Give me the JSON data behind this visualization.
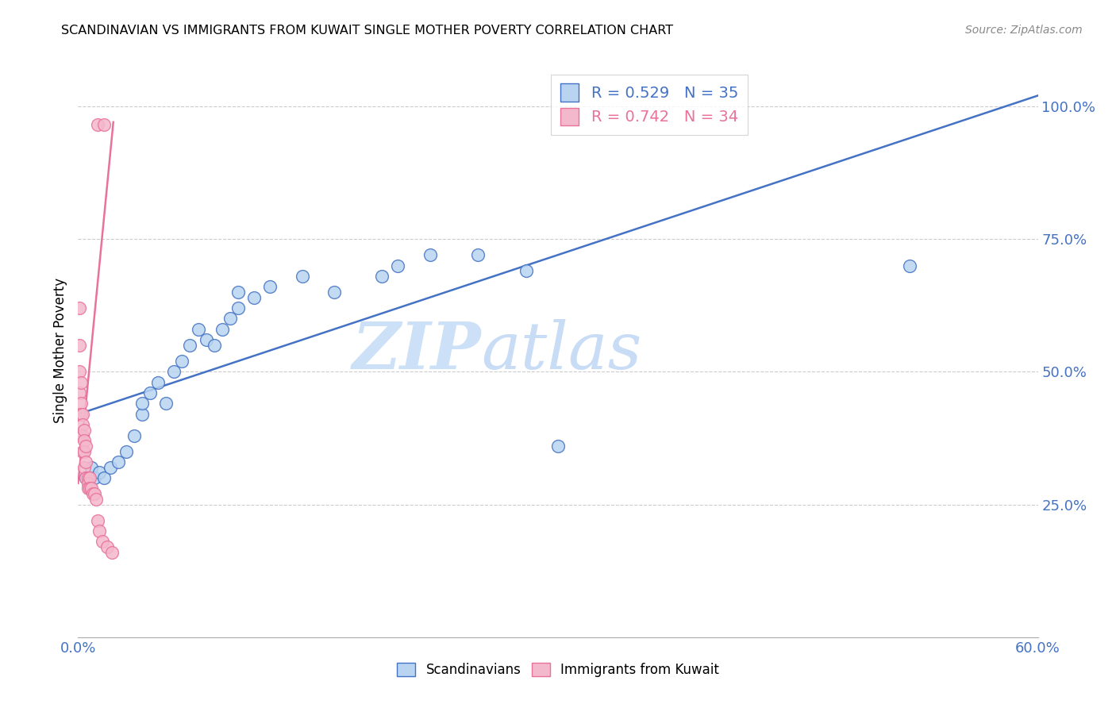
{
  "title": "SCANDINAVIAN VS IMMIGRANTS FROM KUWAIT SINGLE MOTHER POVERTY CORRELATION CHART",
  "source": "Source: ZipAtlas.com",
  "ylabel": "Single Mother Poverty",
  "xlim": [
    0.0,
    0.6
  ],
  "ylim": [
    0.0,
    1.08
  ],
  "xticks": [
    0.0,
    0.06,
    0.12,
    0.18,
    0.24,
    0.3,
    0.36,
    0.42,
    0.48,
    0.54,
    0.6
  ],
  "xtick_labels": [
    "0.0%",
    "",
    "",
    "",
    "",
    "",
    "",
    "",
    "",
    "",
    "60.0%"
  ],
  "ytick_positions": [
    0.25,
    0.5,
    0.75,
    1.0
  ],
  "ytick_labels": [
    "25.0%",
    "50.0%",
    "75.0%",
    "100.0%"
  ],
  "blue_R": 0.529,
  "blue_N": 35,
  "pink_R": 0.742,
  "pink_N": 34,
  "blue_color": "#b8d4f0",
  "pink_color": "#f4b8cc",
  "blue_line_color": "#4472c4",
  "pink_line_color": "#e8729a",
  "watermark_zip_color": "#cce0f8",
  "watermark_atlas_color": "#cce0f8",
  "blue_scatter_x": [
    0.005,
    0.008,
    0.01,
    0.013,
    0.016,
    0.02,
    0.025,
    0.03,
    0.035,
    0.04,
    0.04,
    0.045,
    0.05,
    0.055,
    0.06,
    0.065,
    0.07,
    0.075,
    0.08,
    0.085,
    0.09,
    0.095,
    0.1,
    0.1,
    0.11,
    0.12,
    0.14,
    0.16,
    0.19,
    0.2,
    0.22,
    0.25,
    0.28,
    0.52,
    0.3
  ],
  "blue_scatter_y": [
    0.3,
    0.32,
    0.3,
    0.31,
    0.3,
    0.32,
    0.33,
    0.35,
    0.38,
    0.42,
    0.44,
    0.46,
    0.48,
    0.44,
    0.5,
    0.52,
    0.55,
    0.58,
    0.56,
    0.55,
    0.58,
    0.6,
    0.62,
    0.65,
    0.64,
    0.66,
    0.68,
    0.65,
    0.68,
    0.7,
    0.72,
    0.72,
    0.69,
    0.7,
    0.36
  ],
  "pink_scatter_x": [
    0.001,
    0.001,
    0.001,
    0.001,
    0.001,
    0.002,
    0.002,
    0.002,
    0.002,
    0.003,
    0.003,
    0.003,
    0.003,
    0.004,
    0.004,
    0.004,
    0.004,
    0.005,
    0.005,
    0.005,
    0.006,
    0.006,
    0.006,
    0.007,
    0.007,
    0.008,
    0.009,
    0.01,
    0.011,
    0.012,
    0.013,
    0.015,
    0.018,
    0.021
  ],
  "pink_scatter_y": [
    0.62,
    0.55,
    0.5,
    0.46,
    0.42,
    0.48,
    0.44,
    0.42,
    0.38,
    0.42,
    0.4,
    0.38,
    0.35,
    0.39,
    0.37,
    0.35,
    0.32,
    0.36,
    0.33,
    0.3,
    0.3,
    0.29,
    0.28,
    0.3,
    0.28,
    0.28,
    0.27,
    0.27,
    0.26,
    0.22,
    0.2,
    0.18,
    0.17,
    0.16
  ],
  "blue_line_x": [
    0.0,
    0.6
  ],
  "blue_line_y": [
    0.42,
    1.02
  ],
  "pink_line_x": [
    0.0,
    0.022
  ],
  "pink_line_y": [
    0.29,
    0.97
  ]
}
